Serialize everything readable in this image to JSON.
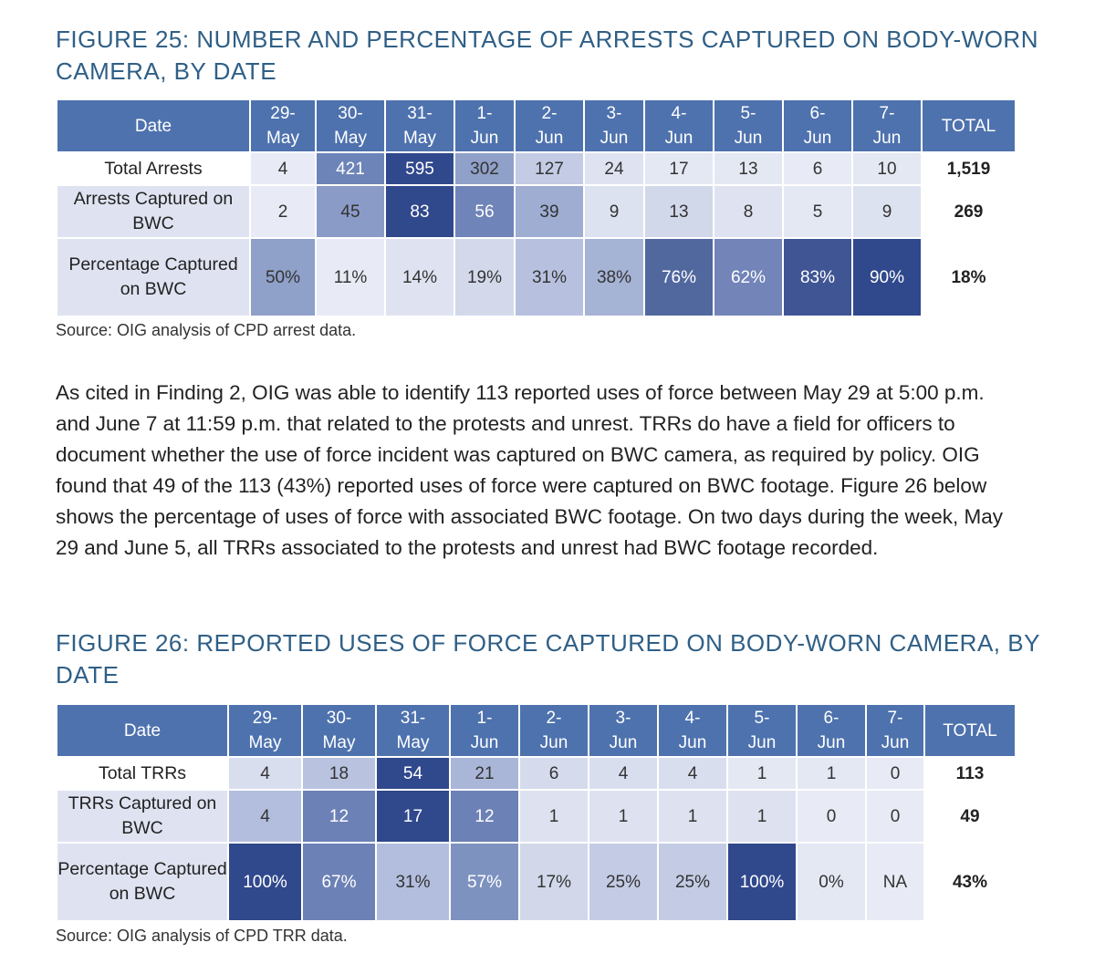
{
  "figure25": {
    "title": "FIGURE 25: NUMBER AND PERCENTAGE OF ARRESTS CAPTURED ON BODY-WORN CAMERA, BY DATE",
    "headers": [
      "Date",
      "29-\nMay",
      "30-\nMay",
      "31-\nMay",
      "1-\nJun",
      "2-\nJun",
      "3-\nJun",
      "4-\nJun",
      "5-\nJun",
      "6-\nJun",
      "7-\nJun",
      "TOTAL"
    ],
    "rows": [
      {
        "label": "Total Arrests",
        "values": [
          "4",
          "421",
          "595",
          "302",
          "127",
          "24",
          "17",
          "13",
          "6",
          "10"
        ],
        "colors": [
          "#e8ebf5",
          "#6d84b8",
          "#30488c",
          "#8fa0c9",
          "#c3cce4",
          "#dfe3f1",
          "#e4e8f3",
          "#e4e8f3",
          "#e8ebf5",
          "#e4e8f3"
        ],
        "total": "1,519"
      },
      {
        "label": "Arrests Captured on BWC",
        "values": [
          "2",
          "45",
          "83",
          "56",
          "39",
          "9",
          "13",
          "8",
          "5",
          "9"
        ],
        "colors": [
          "#e8ebf5",
          "#8a9bc7",
          "#30488c",
          "#6f84b8",
          "#9eadd1",
          "#dde2f0",
          "#d1d8ea",
          "#dfe3f1",
          "#e4e8f3",
          "#dde2f0"
        ],
        "total": "269"
      },
      {
        "label": "Percentage Captured on BWC",
        "values": [
          "50%",
          "11%",
          "14%",
          "19%",
          "31%",
          "38%",
          "76%",
          "62%",
          "83%",
          "90%"
        ],
        "colors": [
          "#8fa0c9",
          "#e8ebf5",
          "#dfe3f1",
          "#d3d9eb",
          "#b7c1df",
          "#a5b3d5",
          "#51689f",
          "#7284b8",
          "#3f5594",
          "#30488c"
        ],
        "total": "18%"
      }
    ],
    "source": "Source: OIG analysis of CPD arrest data."
  },
  "paragraph": "As cited in Finding 2, OIG was able to identify 113 reported uses of force between May 29 at 5:00 p.m. and June 7 at 11:59 p.m. that related to the protests and unrest. TRRs do have a field for officers to document whether the use of force incident was captured on BWC camera, as required by policy. OIG found that 49 of the 113 (43%) reported uses of force were captured on BWC footage. Figure 26 below shows the percentage of uses of force with associated BWC footage. On two days during the week, May 29 and June 5, all TRRs associated to the protests and unrest had BWC footage recorded.",
  "figure26": {
    "title": "FIGURE 26: REPORTED USES OF FORCE CAPTURED ON BODY-WORN CAMERA, BY DATE",
    "headers": [
      "Date",
      "29-\nMay",
      "30-\nMay",
      "31-\nMay",
      "1-\nJun",
      "2-\nJun",
      "3-\nJun",
      "4-\nJun",
      "5-\nJun",
      "6-\nJun",
      "7-\nJun",
      "TOTAL"
    ],
    "rows": [
      {
        "label": "Total TRRs",
        "values": [
          "4",
          "18",
          "54",
          "21",
          "6",
          "4",
          "4",
          "1",
          "1",
          "0"
        ],
        "colors": [
          "#d9deef",
          "#b9c3e0",
          "#30488c",
          "#aab6d8",
          "#d5dbec",
          "#d9deef",
          "#d9deef",
          "#e4e8f3",
          "#e4e8f3",
          "#e8ebf5"
        ],
        "total": "113"
      },
      {
        "label": "TRRs Captured on BWC",
        "values": [
          "4",
          "12",
          "17",
          "12",
          "1",
          "1",
          "1",
          "1",
          "0",
          "0"
        ],
        "colors": [
          "#b3bede",
          "#6c81b6",
          "#30488c",
          "#6c81b6",
          "#dee2f0",
          "#dee2f0",
          "#dee2f0",
          "#dee2f0",
          "#e8ebf5",
          "#e8ebf5"
        ],
        "total": "49"
      },
      {
        "label": "Percentage Captured on BWC",
        "values": [
          "100%",
          "67%",
          "31%",
          "57%",
          "17%",
          "25%",
          "25%",
          "100%",
          "0%",
          "NA"
        ],
        "colors": [
          "#30488c",
          "#6c81b6",
          "#b3bede",
          "#7e92c0",
          "#d2d8ea",
          "#c3cce4",
          "#c3cce4",
          "#30488c",
          "#e4e8f3",
          "#e8ebf5"
        ],
        "total": "43%"
      }
    ],
    "source": "Source: OIG analysis of CPD TRR data."
  }
}
